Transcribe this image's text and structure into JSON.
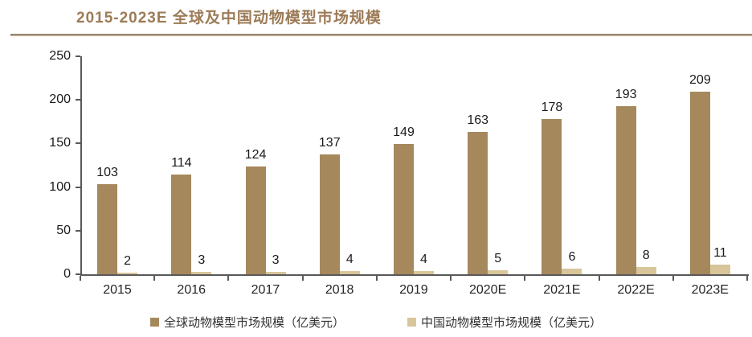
{
  "header": {
    "title": "2015-2023E 全球及中国动物模型市场规模",
    "title_color": "#9c7b57"
  },
  "chart_data": {
    "type": "bar",
    "title": "2015-2023E 全球及中国动物模型市场规模",
    "categories": [
      "2015",
      "2016",
      "2017",
      "2018",
      "2019",
      "2020E",
      "2021E",
      "2022E",
      "2023E"
    ],
    "series": [
      {
        "name": "全球动物模型市场规模（亿美元）",
        "color": "#a5885c",
        "values": [
          103,
          114,
          124,
          137,
          149,
          163,
          178,
          193,
          209
        ]
      },
      {
        "name": "中国动物模型市场规模（亿美元）",
        "color": "#d8c69a",
        "values": [
          2,
          3,
          3,
          4,
          4,
          5,
          6,
          8,
          11
        ]
      }
    ],
    "ylim": [
      0,
      250
    ],
    "ytick_step": 50,
    "yticks": [
      0,
      50,
      100,
      150,
      200,
      250
    ],
    "data_labels": true,
    "grid": false,
    "legend_position": "bottom",
    "axis_color": "#595959",
    "label_color": "#1a1a1a"
  }
}
